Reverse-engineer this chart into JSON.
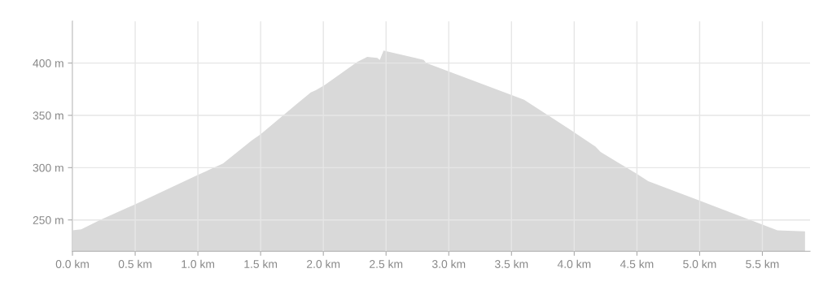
{
  "chart_data": {
    "type": "area",
    "color": "#d9d9d9",
    "grid": true,
    "legend": false,
    "x": [
      0.0,
      0.07,
      0.22,
      0.5,
      1.0,
      1.2,
      1.43,
      1.5,
      1.78,
      1.9,
      1.94,
      2.01,
      2.27,
      2.35,
      2.43,
      2.45,
      2.48,
      2.8,
      2.82,
      3.51,
      3.6,
      3.83,
      3.96,
      4.17,
      4.21,
      4.5,
      4.59,
      5.01,
      5.51,
      5.62,
      5.84
    ],
    "values": [
      240,
      241,
      250,
      265,
      293,
      304,
      326,
      332,
      360,
      372,
      374,
      379,
      401,
      406,
      405,
      403,
      412,
      403,
      400,
      369,
      365,
      347,
      337,
      320,
      315,
      294,
      287,
      268,
      245,
      240,
      239
    ],
    "xlim": [
      0,
      5.88
    ],
    "ylim": [
      220,
      440
    ],
    "xticks": [
      {
        "value": 0,
        "label": "0.0 km"
      },
      {
        "value": 0.5,
        "label": "0.5 km"
      },
      {
        "value": 1.0,
        "label": "1.0 km"
      },
      {
        "value": 1.5,
        "label": "1.5 km"
      },
      {
        "value": 2.0,
        "label": "2.0 km"
      },
      {
        "value": 2.5,
        "label": "2.5 km"
      },
      {
        "value": 3.0,
        "label": "3.0 km"
      },
      {
        "value": 3.5,
        "label": "3.5 km"
      },
      {
        "value": 4.0,
        "label": "4.0 km"
      },
      {
        "value": 4.5,
        "label": "4.5 km"
      },
      {
        "value": 5.0,
        "label": "5.0 km"
      },
      {
        "value": 5.5,
        "label": "5.5 km"
      }
    ],
    "yticks": [
      {
        "value": 250,
        "label": "250 m"
      },
      {
        "value": 300,
        "label": "300 m"
      },
      {
        "value": 350,
        "label": "350 m"
      },
      {
        "value": 400,
        "label": "400 m"
      }
    ]
  }
}
